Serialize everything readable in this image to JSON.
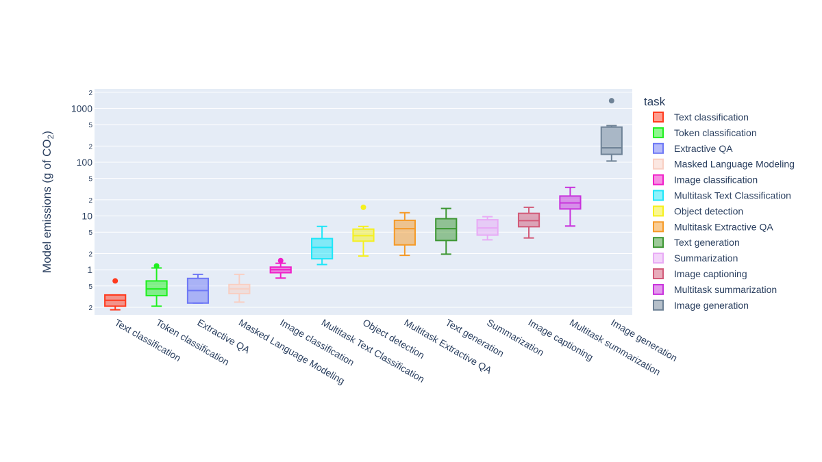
{
  "chart_data": {
    "type": "box",
    "ylabel_main": "Model emissions (g of CO",
    "ylabel_sub": "2",
    "ylabel_close": ")",
    "yscale": "log",
    "ylim": [
      0.145,
      2300
    ],
    "y_major_ticks": [
      {
        "value": 1,
        "label": "1"
      },
      {
        "value": 10,
        "label": "10"
      },
      {
        "value": 100,
        "label": "100"
      },
      {
        "value": 1000,
        "label": "1000"
      }
    ],
    "y_minor_ticks": [
      {
        "value": 0.2,
        "label": "2"
      },
      {
        "value": 0.5,
        "label": "5"
      },
      {
        "value": 2,
        "label": "2"
      },
      {
        "value": 5,
        "label": "5"
      },
      {
        "value": 20,
        "label": "2"
      },
      {
        "value": 50,
        "label": "5"
      },
      {
        "value": 200,
        "label": "2"
      },
      {
        "value": 500,
        "label": "5"
      },
      {
        "value": 2000,
        "label": "2"
      }
    ],
    "legend_title": "task",
    "legend_position": "right",
    "series": [
      {
        "name": "Text classification",
        "color": "#ff3a1e",
        "min": 0.18,
        "q1": 0.21,
        "median": 0.27,
        "q3": 0.34,
        "max": 0.34,
        "outliers": [
          0.62
        ]
      },
      {
        "name": "Token classification",
        "color": "#1ef01e",
        "min": 0.21,
        "q1": 0.33,
        "median": 0.44,
        "q3": 0.62,
        "max": 1.08,
        "outliers": [
          1.18
        ]
      },
      {
        "name": "Extractive QA",
        "color": "#6e78f5",
        "min": 0.24,
        "q1": 0.24,
        "median": 0.41,
        "q3": 0.69,
        "max": 0.82,
        "outliers": []
      },
      {
        "name": "Masked Language Modeling",
        "color": "#f8cfc3",
        "min": 0.25,
        "q1": 0.36,
        "median": 0.44,
        "q3": 0.53,
        "max": 0.82,
        "outliers": []
      },
      {
        "name": "Image classification",
        "color": "#f01ec8",
        "min": 0.7,
        "q1": 0.88,
        "median": 1.0,
        "q3": 1.12,
        "max": 1.32,
        "outliers": [
          1.48
        ]
      },
      {
        "name": "Multitask Text Classification",
        "color": "#1ee6f8",
        "min": 1.25,
        "q1": 1.6,
        "median": 2.6,
        "q3": 3.8,
        "max": 6.4,
        "outliers": []
      },
      {
        "name": "Object detection",
        "color": "#f5f01e",
        "min": 1.8,
        "q1": 3.4,
        "median": 4.3,
        "q3": 5.7,
        "max": 6.4,
        "outliers": [
          14.5
        ]
      },
      {
        "name": "Multitask Extractive QA",
        "color": "#f59a28",
        "min": 1.85,
        "q1": 2.9,
        "median": 5.8,
        "q3": 8.3,
        "max": 11.5,
        "outliers": []
      },
      {
        "name": "Text generation",
        "color": "#3c9632",
        "min": 1.95,
        "q1": 3.5,
        "median": 5.8,
        "q3": 8.9,
        "max": 13.8,
        "outliers": []
      },
      {
        "name": "Summarization",
        "color": "#e8aaf5",
        "min": 3.6,
        "q1": 4.4,
        "median": 6.0,
        "q3": 8.5,
        "max": 9.7,
        "outliers": []
      },
      {
        "name": "Image captioning",
        "color": "#d25a78",
        "min": 3.9,
        "q1": 6.3,
        "median": 8.2,
        "q3": 11.2,
        "max": 14.5,
        "outliers": []
      },
      {
        "name": "Multitask summarization",
        "color": "#c832dc",
        "min": 6.5,
        "q1": 13.5,
        "median": 17.5,
        "q3": 23.5,
        "max": 34.0,
        "outliers": []
      },
      {
        "name": "Image generation",
        "color": "#6e8296",
        "min": 105,
        "q1": 140,
        "median": 185,
        "q3": 450,
        "max": 480,
        "outliers": [
          1390
        ]
      }
    ]
  }
}
